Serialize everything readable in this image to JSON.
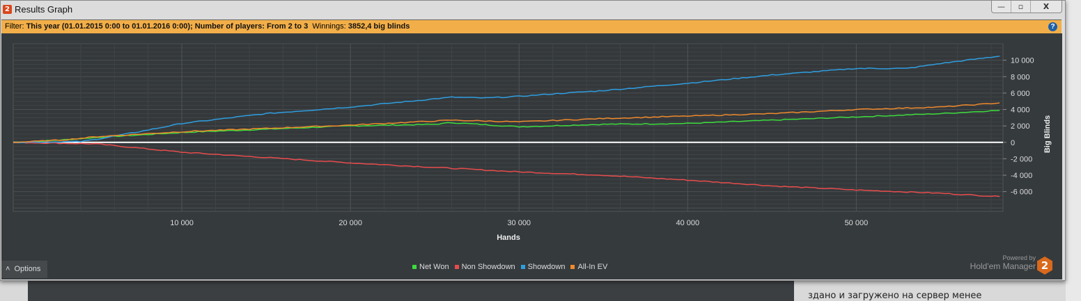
{
  "window": {
    "title": "Results Graph",
    "logo": "2",
    "minimize": "—",
    "maximize": "▫",
    "close": "X"
  },
  "filter": {
    "label": "Filter:",
    "criteria": "This year (01.01.2015 0:00 to 01.01.2016 0:00); Number of players: From 2 to 3",
    "winnings_label": "Winnings:",
    "winnings_value": "3852,4 big blinds",
    "help": "?"
  },
  "options_label": "Options",
  "powered": {
    "line1": "Powered by",
    "line2": "Hold'em Manager",
    "logo": "2"
  },
  "background_text": "здано и загружено на сервер менее",
  "chart_data": {
    "type": "line",
    "xlabel": "Hands",
    "ylabel": "Big Blinds",
    "xlim": [
      0,
      58700
    ],
    "ylim": [
      -8400,
      12000
    ],
    "xticks": [
      10000,
      20000,
      30000,
      40000,
      50000
    ],
    "xtick_labels": [
      "10 000",
      "20 000",
      "30 000",
      "40 000",
      "50 000"
    ],
    "yticks": [
      10000,
      8000,
      6000,
      4000,
      2000,
      0,
      -2000,
      -4000,
      -6000
    ],
    "ytick_labels": [
      "10 000",
      "8 000",
      "6 000",
      "4 000",
      "2 000",
      "0",
      "-2 000",
      "-4 000",
      "-6 000"
    ],
    "grid": true,
    "legend": "bottom-center",
    "series": [
      {
        "name": "Net Won",
        "color": "#3ddc3d",
        "x": [
          0,
          3000,
          5000,
          10000,
          15000,
          20000,
          25000,
          26000,
          30000,
          35000,
          40000,
          45000,
          50000,
          55000,
          58500
        ],
        "y": [
          0,
          300,
          600,
          1200,
          1600,
          2000,
          2200,
          2400,
          1900,
          2200,
          2300,
          2700,
          3100,
          3500,
          3900
        ]
      },
      {
        "name": "Non Showdown",
        "color": "#e84c4c",
        "x": [
          0,
          5000,
          10000,
          20000,
          30000,
          35000,
          40000,
          45000,
          50000,
          55000,
          58500
        ],
        "y": [
          0,
          -200,
          -1200,
          -2500,
          -3600,
          -4000,
          -4600,
          -5300,
          -5800,
          -6200,
          -6600
        ]
      },
      {
        "name": "Showdown",
        "color": "#2f9ee0",
        "x": [
          0,
          4000,
          5000,
          8000,
          10000,
          15000,
          20000,
          25000,
          26000,
          28000,
          30000,
          32000,
          35000,
          40000,
          45000,
          50000,
          53000,
          55000,
          58500
        ],
        "y": [
          0,
          100,
          400,
          1500,
          2300,
          3500,
          4300,
          5300,
          5500,
          5400,
          5600,
          5900,
          6300,
          7200,
          8200,
          9000,
          9000,
          9600,
          10500
        ]
      },
      {
        "name": "All-In EV",
        "color": "#f08a2c",
        "x": [
          0,
          3000,
          5000,
          10000,
          15000,
          20000,
          26000,
          30000,
          35000,
          40000,
          45000,
          50000,
          55000,
          58500
        ],
        "y": [
          0,
          300,
          700,
          1300,
          1700,
          2100,
          2700,
          2500,
          2900,
          3200,
          3500,
          4000,
          4300,
          4800
        ]
      }
    ]
  }
}
